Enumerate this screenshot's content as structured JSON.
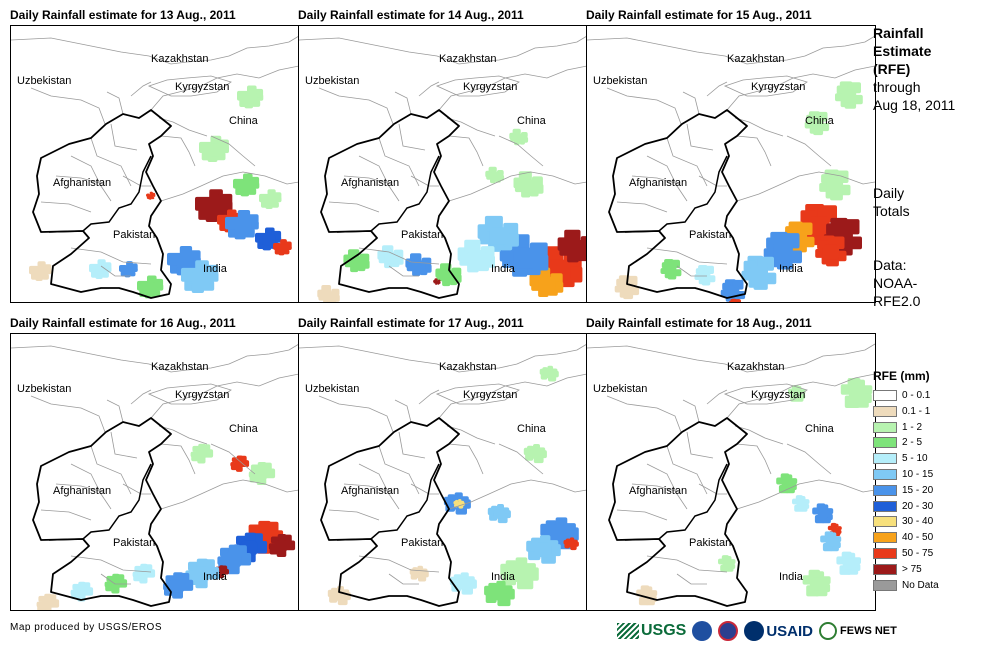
{
  "panels": [
    {
      "title": "Daily Rainfall estimate for 13 Aug., 2011",
      "pattern": "a"
    },
    {
      "title": "Daily Rainfall estimate for 14 Aug., 2011",
      "pattern": "b"
    },
    {
      "title": "Daily Rainfall estimate for 15 Aug., 2011",
      "pattern": "c"
    },
    {
      "title": "Daily Rainfall estimate for 16 Aug., 2011",
      "pattern": "d"
    },
    {
      "title": "Daily Rainfall estimate for 17 Aug., 2011",
      "pattern": "e"
    },
    {
      "title": "Daily Rainfall estimate for 18 Aug., 2011",
      "pattern": "f"
    }
  ],
  "country_labels": {
    "kazakhstan": "Kazakhstan",
    "uzbekistan": "Uzbekistan",
    "kyrgyzstan": "Kyrgyzstan",
    "china": "China",
    "afghanistan": "Afghanistan",
    "pakistan": "Pakistan",
    "india": "India"
  },
  "side": {
    "title_lines": [
      "Rainfall",
      "Estimate",
      "(RFE)"
    ],
    "through": "through",
    "date": "Aug 18, 2011",
    "daily": "Daily",
    "totals": "Totals",
    "data_lines": [
      "Data:",
      "NOAA-",
      "RFE2.0"
    ]
  },
  "legend": {
    "title": "RFE (mm)",
    "items": [
      {
        "label": "0 - 0.1",
        "color": "#ffffff"
      },
      {
        "label": "0.1 - 1",
        "color": "#eedbbc"
      },
      {
        "label": "1 - 2",
        "color": "#b7f3b0"
      },
      {
        "label": "2 - 5",
        "color": "#7ee37a"
      },
      {
        "label": "5 - 10",
        "color": "#b5eefa"
      },
      {
        "label": "10 - 15",
        "color": "#7fc9f5"
      },
      {
        "label": "15 - 20",
        "color": "#4a93ea"
      },
      {
        "label": "20 - 30",
        "color": "#1f5fd8"
      },
      {
        "label": "30 - 40",
        "color": "#f7e07c"
      },
      {
        "label": "40 - 50",
        "color": "#f7a21b"
      },
      {
        "label": "50 - 75",
        "color": "#e8391a"
      },
      {
        "label": "> 75",
        "color": "#9c1a1a"
      },
      {
        "label": "No Data",
        "color": "#9a9a9a"
      }
    ]
  },
  "footer": {
    "credit": "Map produced by USGS/EROS",
    "usgs": "USGS",
    "usaid": "USAID",
    "fewsnet": "FEWS NET"
  }
}
